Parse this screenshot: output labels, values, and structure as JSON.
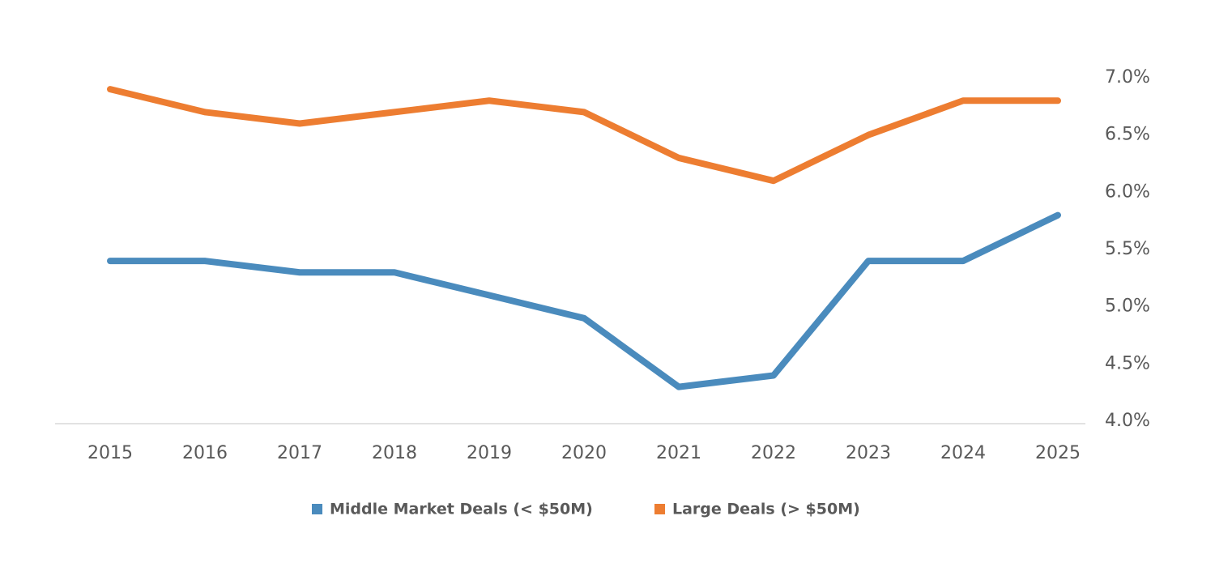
{
  "chart_data": {
    "type": "line",
    "categories": [
      "2015",
      "2016",
      "2017",
      "2018",
      "2019",
      "2020",
      "2021",
      "2022",
      "2023",
      "2024",
      "2025"
    ],
    "series": [
      {
        "name": "Middle Market Deals (< $50M)",
        "color": "#4a8bbd",
        "values": [
          5.4,
          5.4,
          5.3,
          5.3,
          5.1,
          4.9,
          4.3,
          4.4,
          5.4,
          5.4,
          5.8
        ]
      },
      {
        "name": "Large Deals (> $50M)",
        "color": "#ed7d31",
        "values": [
          6.9,
          6.7,
          6.6,
          6.7,
          6.8,
          6.7,
          6.3,
          6.1,
          6.5,
          6.8,
          6.8
        ]
      }
    ],
    "ylim": [
      4.0,
      7.0
    ],
    "yticks": [
      {
        "value": 4.0,
        "label": "4.0%"
      },
      {
        "value": 4.5,
        "label": "4.5%"
      },
      {
        "value": 5.0,
        "label": "5.0%"
      },
      {
        "value": 5.5,
        "label": "5.5%"
      },
      {
        "value": 6.0,
        "label": "6.0%"
      },
      {
        "value": 6.5,
        "label": "6.5%"
      },
      {
        "value": 7.0,
        "label": "7.0%"
      }
    ],
    "y_axis_side": "right",
    "grid": false,
    "legend": "bottom"
  }
}
